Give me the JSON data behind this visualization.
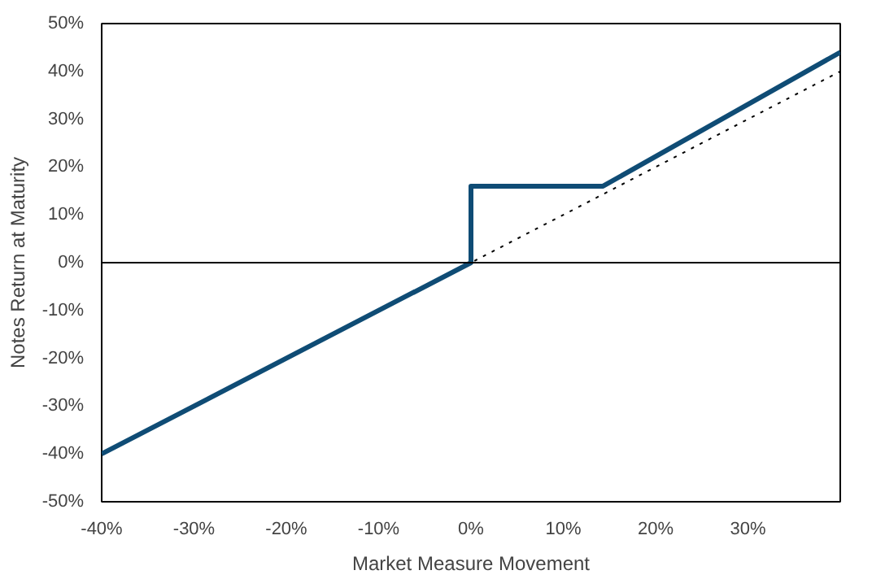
{
  "chart_data": {
    "type": "line",
    "xlabel": "Market Measure Movement",
    "ylabel": "Notes Return at Maturity",
    "series": [
      {
        "x": [
          -40,
          40
        ],
        "values": [
          -40,
          40
        ],
        "color": "#000000",
        "line_style": "dotted"
      },
      {
        "x": [
          -40,
          0,
          0,
          14.3,
          40
        ],
        "values": [
          -40,
          0,
          16,
          16,
          44
        ],
        "color": "#0f4c75",
        "line_style": "solid"
      }
    ],
    "xlim": [
      -40,
      40
    ],
    "ylim": [
      -50,
      50
    ],
    "xticks": [
      {
        "value": -40,
        "label": "-40%"
      },
      {
        "value": -30,
        "label": "-30%"
      },
      {
        "value": -20,
        "label": "-20%"
      },
      {
        "value": -10,
        "label": "-10%"
      },
      {
        "value": 0,
        "label": "0%"
      },
      {
        "value": 10,
        "label": "10%"
      },
      {
        "value": 20,
        "label": "20%"
      },
      {
        "value": 30,
        "label": "30%"
      }
    ],
    "yticks": [
      {
        "value": -50,
        "label": "-50%"
      },
      {
        "value": -40,
        "label": "-40%"
      },
      {
        "value": -30,
        "label": "-30%"
      },
      {
        "value": -20,
        "label": "-20%"
      },
      {
        "value": -10,
        "label": "-10%"
      },
      {
        "value": 0,
        "label": "0%"
      },
      {
        "value": 10,
        "label": "10%"
      },
      {
        "value": 20,
        "label": "20%"
      },
      {
        "value": 30,
        "label": "30%"
      },
      {
        "value": 40,
        "label": "40%"
      },
      {
        "value": 50,
        "label": "50%"
      }
    ],
    "ref_lines": [
      {
        "axis": "y",
        "value": 0,
        "color": "#000000",
        "line_style": "solid"
      }
    ],
    "grid": false
  }
}
